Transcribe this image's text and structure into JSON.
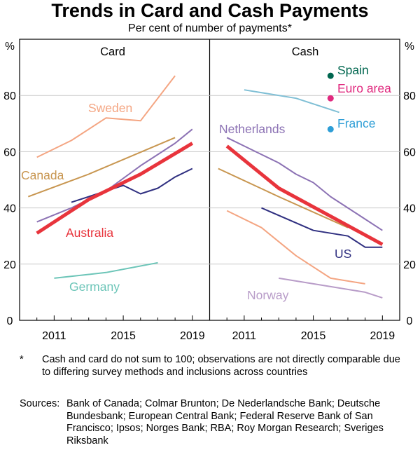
{
  "title": "Trends in Card and Cash Payments",
  "subtitle": "Per cent of number of payments*",
  "notes": {
    "marker": "*",
    "text": "Cash and card do not sum to 100; observations are not directly comparable due to differing survey methods and inclusions across countries",
    "sources_label": "Sources:",
    "sources_text": "Bank of Canada; Colmar Brunton; De Nederlandsche Bank; Deutsche Bundesbank; European Central Bank; Federal Reserve Bank of San Francisco; Ipsos; Norges Bank; RBA; Roy Morgan Research; Sveriges Riksbank"
  },
  "chart_data": [
    {
      "type": "line",
      "panel_title": "Card",
      "ylabel": "%",
      "ylim": [
        0,
        100
      ],
      "yticks": [
        0,
        20,
        40,
        60,
        80
      ],
      "xlim": [
        2009,
        2020
      ],
      "xticks": [
        2011,
        2015,
        2019
      ],
      "series": [
        {
          "name": "Sweden",
          "color": "#f4a582",
          "width": 2,
          "x": [
            2010,
            2012,
            2014,
            2016,
            2018
          ],
          "y": [
            58,
            64,
            72,
            71,
            87
          ]
        },
        {
          "name": "Canada",
          "color": "#c89650",
          "width": 2,
          "x": [
            2009.5,
            2013,
            2018
          ],
          "y": [
            44,
            52,
            65
          ]
        },
        {
          "name": "Netherlands",
          "color": "#8c72b4",
          "width": 2,
          "x": [
            2010,
            2012,
            2014,
            2016,
            2017,
            2018,
            2019
          ],
          "y": [
            35,
            40,
            46,
            55,
            59,
            63,
            68
          ]
        },
        {
          "name": "US",
          "color": "#2f2f80",
          "width": 2,
          "x": [
            2012,
            2015,
            2016,
            2017,
            2018,
            2019
          ],
          "y": [
            42,
            48,
            45,
            47,
            51,
            54
          ]
        },
        {
          "name": "Australia",
          "color": "#e8343c",
          "width": 5,
          "x": [
            2010,
            2013,
            2016,
            2019
          ],
          "y": [
            31,
            43,
            52,
            63
          ]
        },
        {
          "name": "Germany",
          "color": "#6cc5b8",
          "width": 2,
          "x": [
            2011,
            2014,
            2017
          ],
          "y": [
            15,
            17,
            20.5
          ]
        }
      ],
      "labels": [
        "Sweden",
        "Canada",
        "Australia",
        "Germany"
      ]
    },
    {
      "type": "line",
      "panel_title": "Cash",
      "ylabel": "%",
      "ylim": [
        0,
        100
      ],
      "yticks": [
        0,
        20,
        40,
        60,
        80
      ],
      "xlim": [
        2009,
        2020
      ],
      "xticks": [
        2011,
        2015,
        2019
      ],
      "series": [
        {
          "name": "Netherlands",
          "color": "#8c72b4",
          "width": 2,
          "x": [
            2010,
            2011,
            2012,
            2013,
            2014,
            2015,
            2016,
            2017,
            2018,
            2019
          ],
          "y": [
            65,
            62,
            59,
            56,
            52,
            49,
            44,
            40,
            36,
            32
          ]
        },
        {
          "name": "Canada",
          "color": "#c89650",
          "width": 2,
          "x": [
            2009.5,
            2013,
            2017
          ],
          "y": [
            54,
            44,
            33
          ]
        },
        {
          "name": "France",
          "color": "#7fbfd5",
          "width": 2,
          "x": [
            2011,
            2014,
            2016.5
          ],
          "y": [
            82,
            79,
            74
          ]
        },
        {
          "name": "US",
          "color": "#2f2f80",
          "width": 2,
          "x": [
            2012,
            2015,
            2017,
            2018,
            2019
          ],
          "y": [
            40,
            32,
            30,
            26,
            26
          ]
        },
        {
          "name": "Norway-line",
          "color": "#f4a582",
          "width": 2,
          "x": [
            2010,
            2012,
            2014,
            2016,
            2018
          ],
          "y": [
            39,
            33,
            23,
            15,
            13
          ]
        },
        {
          "name": "Norway",
          "color": "#b89cc8",
          "width": 2,
          "x": [
            2013,
            2016,
            2018,
            2019
          ],
          "y": [
            15,
            12,
            10,
            8
          ]
        },
        {
          "name": "Australia",
          "color": "#e8343c",
          "width": 5,
          "x": [
            2010,
            2013,
            2016,
            2019
          ],
          "y": [
            62,
            47,
            37,
            27
          ]
        }
      ],
      "points": [
        {
          "name": "Spain",
          "x": 2016,
          "y": 87,
          "color": "#00664f"
        },
        {
          "name": "Euro area",
          "x": 2016,
          "y": 79,
          "color": "#e0297e"
        },
        {
          "name": "France",
          "x": 2016,
          "y": 68,
          "color": "#2e9ed6"
        }
      ],
      "labels": [
        "Netherlands",
        "Spain",
        "Euro area",
        "France",
        "US",
        "Norway"
      ]
    }
  ],
  "panel_labels": {
    "sweden": "Sweden",
    "canada": "Canada",
    "australia": "Australia",
    "germany": "Germany",
    "netherlands": "Netherlands",
    "spain": "Spain",
    "euro": "Euro area",
    "france": "France",
    "us": "US",
    "norway": "Norway"
  },
  "colors": {
    "sweden": "#f4a582",
    "canada": "#c89650",
    "australia": "#e8343c",
    "germany": "#6cc5b8",
    "netherlands": "#8c72b4",
    "spain": "#00664f",
    "euro": "#e0297e",
    "france": "#2e9ed6",
    "us": "#2f2f80",
    "norway": "#b89cc8"
  }
}
